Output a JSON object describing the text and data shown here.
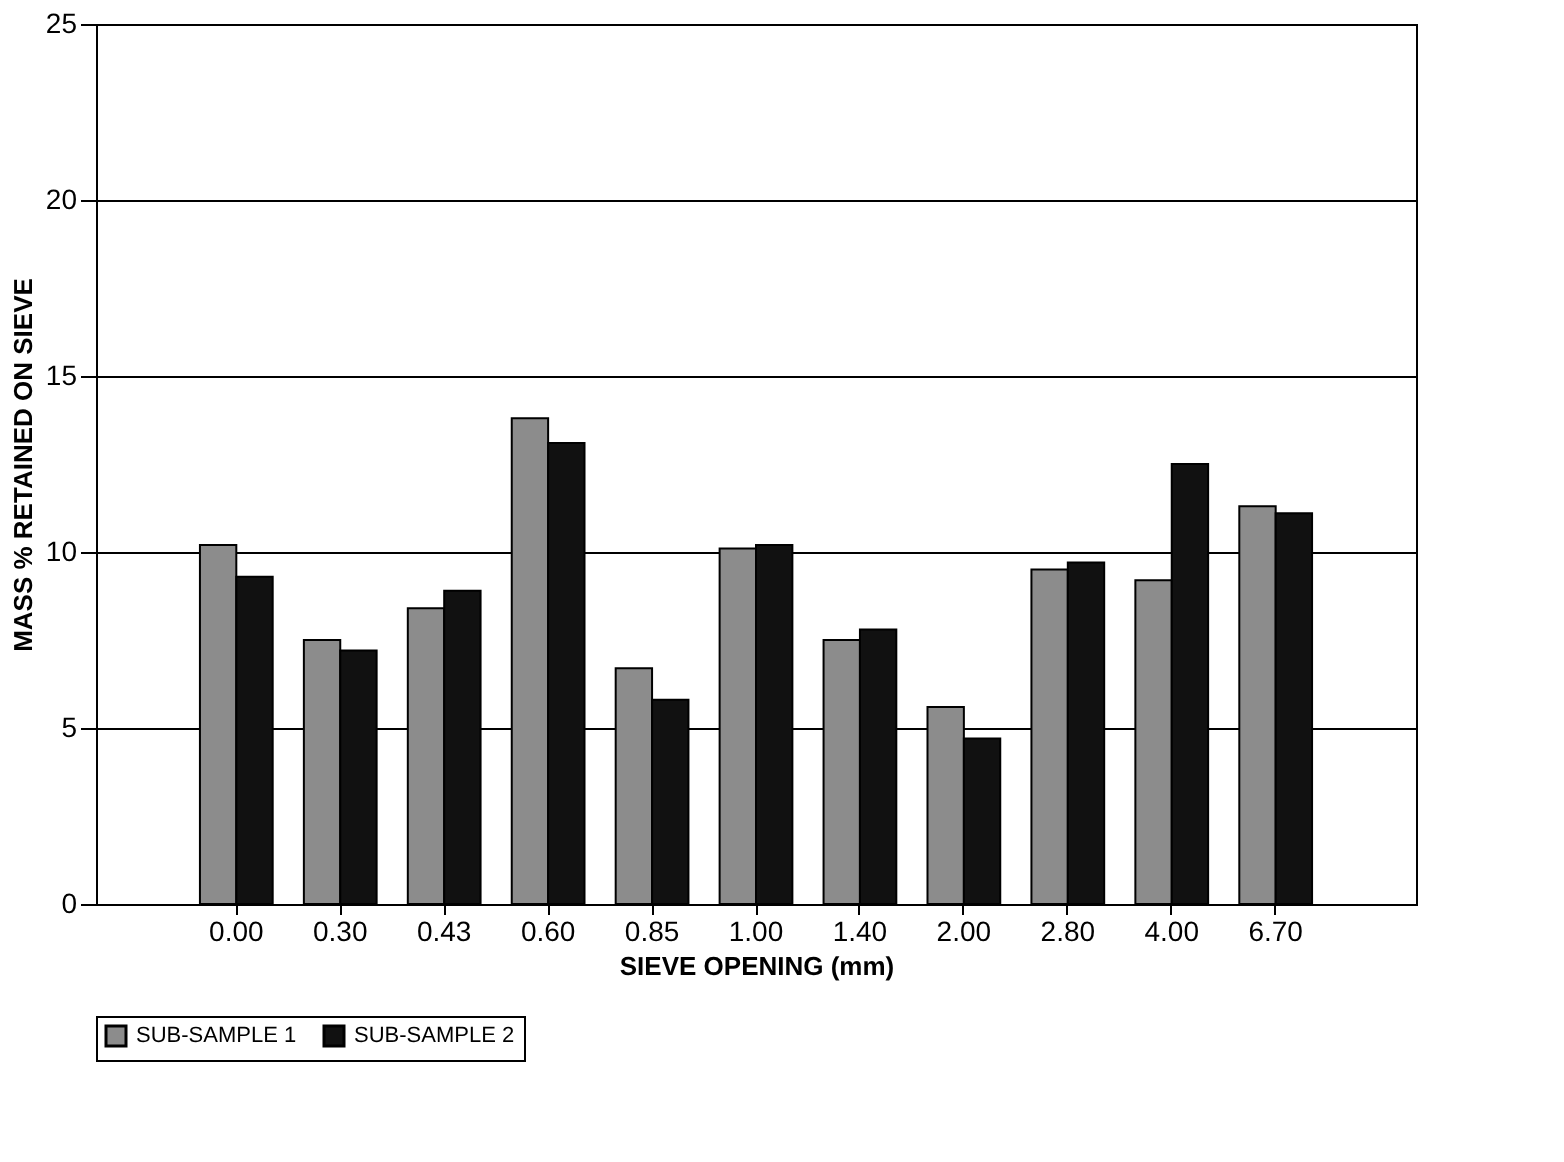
{
  "chart_data": {
    "type": "bar",
    "xlabel": "SIEVE OPENING (mm)",
    "ylabel": "MASS % RETAINED ON SIEVE",
    "categories": [
      "0.00",
      "0.30",
      "0.43",
      "0.60",
      "0.85",
      "1.00",
      "1.40",
      "2.00",
      "2.80",
      "4.00",
      "6.70"
    ],
    "series": [
      {
        "name": "SUB-SAMPLE 1",
        "color": "#8c8c8c",
        "values": [
          10.2,
          7.5,
          8.4,
          13.8,
          6.7,
          10.1,
          7.5,
          5.6,
          9.5,
          9.2,
          11.3
        ]
      },
      {
        "name": "SUB-SAMPLE 2",
        "color": "#111111",
        "values": [
          9.3,
          7.2,
          8.9,
          13.1,
          5.8,
          10.2,
          7.8,
          4.7,
          9.7,
          12.5,
          11.1
        ]
      }
    ],
    "ylim": [
      0,
      25
    ],
    "yticks": [
      0,
      5,
      10,
      15,
      20,
      25
    ],
    "grid": "y",
    "legend": "bottom"
  }
}
